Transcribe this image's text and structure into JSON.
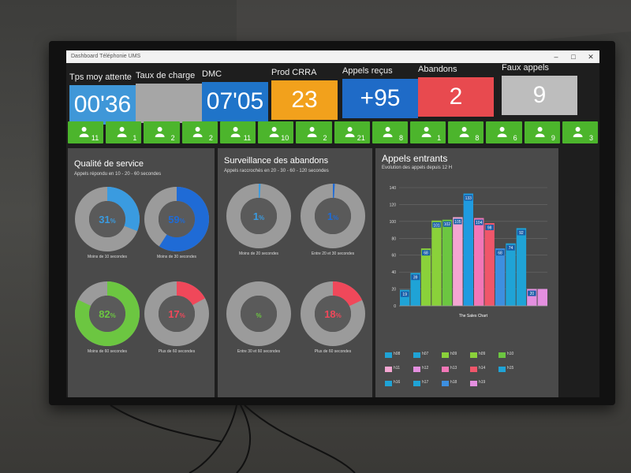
{
  "window": {
    "title": "Dashboard Téléphonie UMS"
  },
  "kpis": [
    {
      "label": "Tps moy attente",
      "value": "00'36",
      "color": "#3f97d8"
    },
    {
      "label": "Taux de charge",
      "value": "",
      "color": "#a6a6a6"
    },
    {
      "label": "DMC",
      "value": "07'05",
      "color": "#1f74c9"
    },
    {
      "label": "Prod CRRA",
      "value": "23",
      "color": "#f2a11c"
    },
    {
      "label": "Appels reçus",
      "value": "+95",
      "color": "#1f6bc7"
    },
    {
      "label": "Abandons",
      "value": "2",
      "color": "#e84a4f"
    },
    {
      "label": "Faux appels",
      "value": "9",
      "color": "#bdbdbd"
    }
  ],
  "agents": [
    "11",
    "1",
    "2",
    "2",
    "11",
    "10",
    "2",
    "21",
    "8",
    "1",
    "8",
    "6",
    "9",
    "3"
  ],
  "quality": {
    "title": "Qualité de service",
    "subtitle": "Appels répondu en 10 - 20 - 60 secondes",
    "donuts": [
      {
        "pct": "31",
        "fraction": 0.31,
        "color": "#3a9be0",
        "caption": "Moins de 10 secondes"
      },
      {
        "pct": "59",
        "fraction": 0.59,
        "color": "#1f6bd6",
        "caption": "Moins de 30 secondes"
      },
      {
        "pct": "82",
        "fraction": 0.82,
        "color": "#6cc641",
        "caption": "Moins de 60 secondes"
      },
      {
        "pct": "17",
        "fraction": 0.17,
        "color": "#f0485a",
        "caption": "Plus de 60 secondes"
      }
    ]
  },
  "abandons": {
    "title": "Surveillance des abandons",
    "subtitle": "Appels raccrochés en 20 - 30 - 60 - 120 secondes",
    "donuts": [
      {
        "pct": "1",
        "fraction": 0.01,
        "color": "#3a9be0",
        "caption": "Moins de 20 secondes"
      },
      {
        "pct": "1",
        "fraction": 0.01,
        "color": "#1f6bd6",
        "caption": "Entre 20 et 30 secondes"
      },
      {
        "pct": "",
        "fraction": 0,
        "color": "#6cc641",
        "caption": "Entre 30 et 60 secondes"
      },
      {
        "pct": "18",
        "fraction": 0.18,
        "color": "#f0485a",
        "caption": "Plus de 60 secondes"
      }
    ]
  },
  "pct_sign": "%",
  "chart_data": {
    "type": "bar",
    "title": "Appels entrants",
    "subtitle": "Evolution des appels depuis 12 H",
    "caption": "The Sales Chart",
    "ylim": [
      0,
      140
    ],
    "yticks": [
      "0",
      "20",
      "40",
      "60",
      "80",
      "100",
      "120",
      "140"
    ],
    "categories": [
      "h08",
      "h07",
      "h09",
      "h09",
      "h10",
      "h11",
      "h11",
      "h12",
      "h13",
      "h14",
      "h15",
      "h16",
      "h17",
      "h18"
    ],
    "values": [
      19,
      39,
      68,
      101,
      102,
      105,
      133,
      104,
      98,
      68,
      74,
      92,
      20,
      20
    ],
    "colors": [
      "#1fa3d6",
      "#1fa3d6",
      "#8ad13a",
      "#8ad13a",
      "#6cc641",
      "#f4a6d2",
      "#1f9be0",
      "#f277b7",
      "#f0566a",
      "#3d8fe0",
      "#1fa3d6",
      "#1fa3d6",
      "#e48fe0",
      "#e48fe0"
    ],
    "labels": [
      "19",
      "39",
      "68",
      "101",
      "102",
      "105",
      "133",
      "104",
      "98",
      "68",
      "74",
      "92",
      "20",
      ""
    ],
    "legend": [
      "h08",
      "h07",
      "h09",
      "h09",
      "h10",
      "h11",
      "h12",
      "h13",
      "h14",
      "h15",
      "h16",
      "h17",
      "h18",
      "h19"
    ],
    "legend_colors": [
      "#1fa3d6",
      "#1fa3d6",
      "#8ad13a",
      "#8ad13a",
      "#6cc641",
      "#f4a6d2",
      "#e48fe0",
      "#f277b7",
      "#f0566a",
      "#1fa3d6",
      "#1fa3d6",
      "#1fa3d6",
      "#3d8fe0",
      "#e48fe0"
    ]
  }
}
